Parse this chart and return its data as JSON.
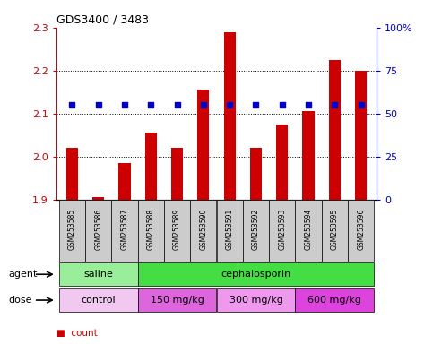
{
  "title": "GDS3400 / 3483",
  "samples": [
    "GSM253585",
    "GSM253586",
    "GSM253587",
    "GSM253588",
    "GSM253589",
    "GSM253590",
    "GSM253591",
    "GSM253592",
    "GSM253593",
    "GSM253594",
    "GSM253595",
    "GSM253596"
  ],
  "bar_values": [
    2.02,
    1.905,
    1.985,
    2.055,
    2.02,
    2.155,
    2.29,
    2.02,
    2.075,
    2.105,
    2.225,
    2.2
  ],
  "percentile_values": [
    55,
    55,
    55,
    55,
    55,
    55,
    55,
    55,
    55,
    55,
    55,
    55
  ],
  "bar_bottom": 1.9,
  "ylim_left": [
    1.9,
    2.3
  ],
  "ylim_right": [
    0,
    100
  ],
  "yticks_left": [
    1.9,
    2.0,
    2.1,
    2.2,
    2.3
  ],
  "yticks_right": [
    0,
    25,
    50,
    75,
    100
  ],
  "bar_color": "#cc0000",
  "dot_color": "#0000cc",
  "agent_groups": [
    {
      "text": "saline",
      "start": 0,
      "end": 2,
      "color": "#99ee99"
    },
    {
      "text": "cephalosporin",
      "start": 3,
      "end": 11,
      "color": "#44dd44"
    }
  ],
  "dose_groups": [
    {
      "text": "control",
      "start": 0,
      "end": 2,
      "color": "#f0c8f0"
    },
    {
      "text": "150 mg/kg",
      "start": 3,
      "end": 5,
      "color": "#dd66dd"
    },
    {
      "text": "300 mg/kg",
      "start": 6,
      "end": 8,
      "color": "#ee99ee"
    },
    {
      "text": "600 mg/kg",
      "start": 9,
      "end": 11,
      "color": "#dd44dd"
    }
  ],
  "tick_label_color_left": "#cc0000",
  "tick_label_color_right": "#0000cc",
  "sample_bg_color": "#cccccc",
  "grid_dotted_color": "#000000",
  "border_color": "#000000"
}
